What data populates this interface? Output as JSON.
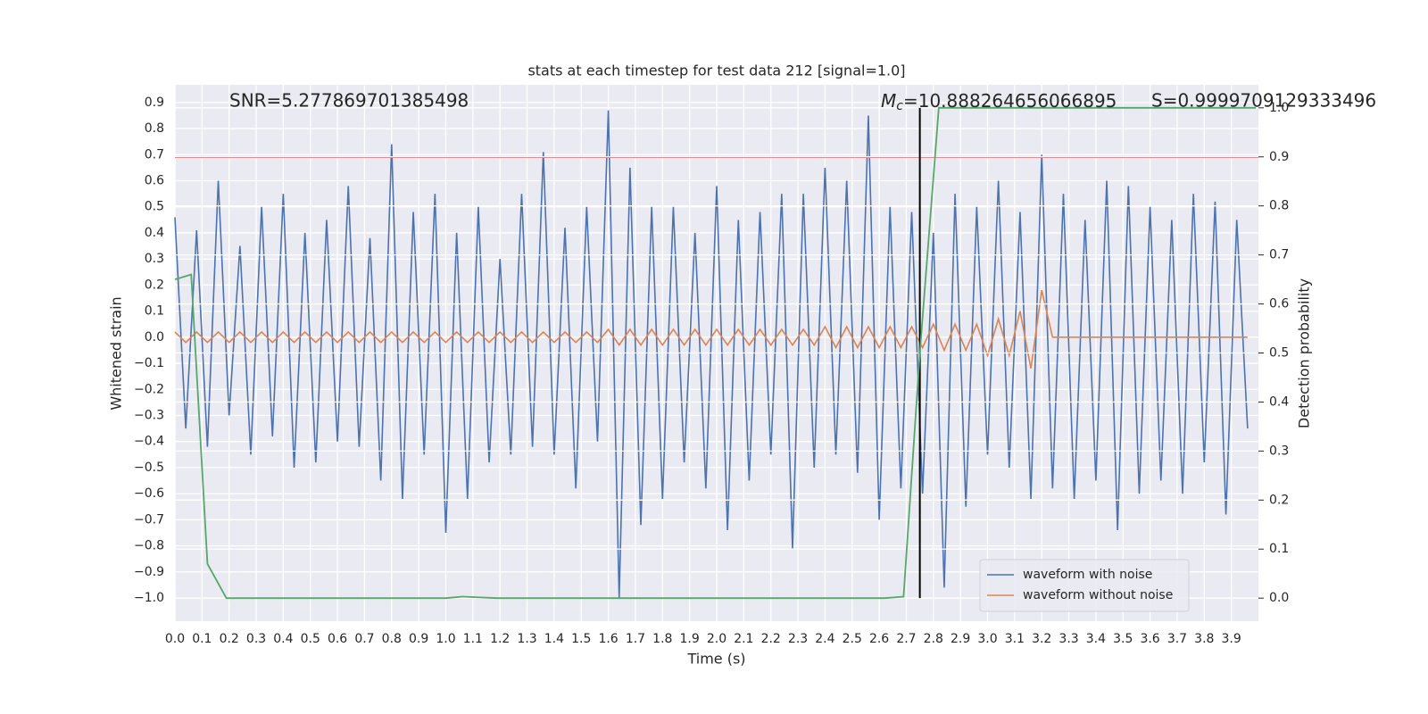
{
  "chart_data": {
    "type": "line",
    "title": "stats at each timestep for test data 212 [signal=1.0]",
    "xlabel": "Time (s)",
    "ylabel": "Whitened strain",
    "y2label": "Detection probability",
    "annotations": {
      "snr": "SNR=5.277869701385498",
      "mc": {
        "symbol": "M",
        "subscript": "c",
        "text": "=10.888264656066895"
      },
      "s": "S=0.9999709129333496"
    },
    "xlim": [
      0,
      4.0
    ],
    "ylim": [
      -1.089,
      0.968
    ],
    "y2lim": [
      -0.047,
      1.047
    ],
    "xticks": [
      {
        "value": 0,
        "label": "0.0"
      },
      0.1,
      0.2,
      0.3,
      0.4,
      0.5,
      0.6,
      0.7,
      0.8,
      0.9,
      {
        "value": 1,
        "label": "1.0"
      },
      1.1,
      1.2,
      1.3,
      1.4,
      1.5,
      1.6,
      1.7,
      1.8,
      1.9,
      {
        "value": 2,
        "label": "2.0"
      },
      2.1,
      2.2,
      2.3,
      2.4,
      2.5,
      2.6,
      2.7,
      2.8,
      2.9,
      {
        "value": 3,
        "label": "3.0"
      },
      3.1,
      3.2,
      3.3,
      3.4,
      3.5,
      3.6,
      3.7,
      3.8,
      3.9
    ],
    "yticks": [
      {
        "value": -1,
        "label": "−1.0"
      },
      {
        "value": -0.9,
        "label": "−0.9"
      },
      {
        "value": -0.8,
        "label": "−0.8"
      },
      {
        "value": -0.7,
        "label": "−0.7"
      },
      {
        "value": -0.6,
        "label": "−0.6"
      },
      {
        "value": -0.5,
        "label": "−0.5"
      },
      {
        "value": -0.4,
        "label": "−0.4"
      },
      {
        "value": -0.3,
        "label": "−0.3"
      },
      {
        "value": -0.2,
        "label": "−0.2"
      },
      {
        "value": -0.1,
        "label": "−0.1"
      },
      {
        "value": 0,
        "label": "0.0"
      },
      0.1,
      0.2,
      0.3,
      0.4,
      0.5,
      0.6,
      0.7,
      0.8,
      0.9
    ],
    "y2ticks": [
      {
        "value": 0,
        "label": "0.0"
      },
      0.1,
      0.2,
      0.3,
      0.4,
      0.5,
      0.6,
      0.7,
      0.8,
      0.9,
      {
        "value": 1,
        "label": "1.0"
      }
    ],
    "grid": true,
    "legend": "lower right",
    "x": [
      0,
      0.04,
      0.08,
      0.12,
      0.16,
      0.2,
      0.24,
      0.28,
      0.32,
      0.36,
      0.4,
      0.44,
      0.48,
      0.52,
      0.56,
      0.6,
      0.64,
      0.68,
      0.72,
      0.76,
      0.8,
      0.84,
      0.88,
      0.92,
      0.96,
      1,
      1.04,
      1.08,
      1.12,
      1.16,
      1.2,
      1.24,
      1.28,
      1.32,
      1.36,
      1.4,
      1.44,
      1.48,
      1.52,
      1.56,
      1.6,
      1.64,
      1.68,
      1.72,
      1.76,
      1.8,
      1.84,
      1.88,
      1.92,
      1.96,
      2,
      2.04,
      2.08,
      2.12,
      2.16,
      2.2,
      2.24,
      2.28,
      2.32,
      2.36,
      2.4,
      2.44,
      2.48,
      2.52,
      2.56,
      2.6,
      2.64,
      2.68,
      2.72,
      2.76,
      2.8,
      2.84,
      2.88,
      2.92,
      2.96,
      3,
      3.04,
      3.08,
      3.12,
      3.16,
      3.2,
      3.24,
      3.28,
      3.32,
      3.36,
      3.4,
      3.44,
      3.48,
      3.52,
      3.56,
      3.6,
      3.64,
      3.68,
      3.72,
      3.76,
      3.8,
      3.84,
      3.88,
      3.92,
      3.96
    ],
    "series": [
      {
        "name": "waveform with noise",
        "color": "#4c72b0",
        "values": [
          0.46,
          -0.35,
          0.41,
          -0.42,
          0.6,
          -0.3,
          0.35,
          -0.45,
          0.5,
          -0.38,
          0.55,
          -0.5,
          0.4,
          -0.48,
          0.45,
          -0.4,
          0.58,
          -0.42,
          0.38,
          -0.55,
          0.74,
          -0.62,
          0.48,
          -0.45,
          0.55,
          -0.75,
          0.4,
          -0.62,
          0.5,
          -0.48,
          0.3,
          -0.45,
          0.55,
          -0.42,
          0.71,
          -0.45,
          0.42,
          -0.58,
          0.5,
          -0.4,
          0.87,
          -1.0,
          0.65,
          -0.72,
          0.5,
          -0.62,
          0.5,
          -0.48,
          0.4,
          -0.58,
          0.58,
          -0.74,
          0.45,
          -0.55,
          0.48,
          -0.45,
          0.55,
          -0.81,
          0.55,
          -0.5,
          0.65,
          -0.45,
          0.6,
          -0.52,
          0.85,
          -0.7,
          0.5,
          -0.58,
          0.48,
          -0.6,
          0.4,
          -0.96,
          0.55,
          -0.65,
          0.5,
          -0.45,
          0.6,
          -0.5,
          0.48,
          -0.62,
          0.7,
          -0.58,
          0.55,
          -0.62,
          0.45,
          -0.55,
          0.6,
          -0.74,
          0.58,
          -0.6,
          0.5,
          -0.55,
          0.45,
          -0.6,
          0.55,
          -0.48,
          0.52,
          -0.68,
          0.45,
          -0.35
        ]
      },
      {
        "name": "waveform without noise",
        "color": "#dd8452",
        "values": [
          0.02,
          -0.02,
          0.02,
          -0.02,
          0.02,
          -0.02,
          0.02,
          -0.02,
          0.02,
          -0.02,
          0.02,
          -0.02,
          0.02,
          -0.02,
          0.02,
          -0.02,
          0.02,
          -0.02,
          0.02,
          -0.02,
          0.02,
          -0.02,
          0.02,
          -0.02,
          0.02,
          -0.02,
          0.02,
          -0.02,
          0.02,
          -0.02,
          0.02,
          -0.02,
          0.02,
          -0.02,
          0.02,
          -0.02,
          0.02,
          -0.02,
          0.02,
          -0.02,
          0.03,
          -0.03,
          0.03,
          -0.03,
          0.03,
          -0.03,
          0.03,
          -0.03,
          0.03,
          -0.03,
          0.03,
          -0.03,
          0.03,
          -0.03,
          0.03,
          -0.03,
          0.03,
          -0.03,
          0.03,
          -0.03,
          0.04,
          -0.04,
          0.04,
          -0.04,
          0.04,
          -0.04,
          0.04,
          -0.04,
          0.04,
          -0.04,
          0.05,
          -0.05,
          0.05,
          -0.05,
          0.05,
          -0.07,
          0.07,
          -0.07,
          0.1,
          -0.12,
          0.18,
          0,
          0,
          0,
          0,
          0,
          0,
          0,
          0,
          0,
          0,
          0,
          0,
          0,
          0,
          0,
          0,
          0,
          0,
          0
        ]
      },
      {
        "color": "#55a868",
        "axis": "y2",
        "x": [
          0,
          0.06,
          0.12,
          0.19,
          1.0,
          1.06,
          1.19,
          2.62,
          2.69,
          2.75,
          2.82,
          3.99
        ],
        "values": [
          0.65,
          0.66,
          0.07,
          0,
          0,
          0.003,
          0,
          0,
          0.003,
          0.5,
          1.0,
          1.0
        ]
      }
    ],
    "threshold": {
      "value": 0.69,
      "color": "#c44e52"
    },
    "vline": {
      "x": 2.75,
      "y2range": [
        0,
        1
      ],
      "color": "#000000"
    }
  }
}
